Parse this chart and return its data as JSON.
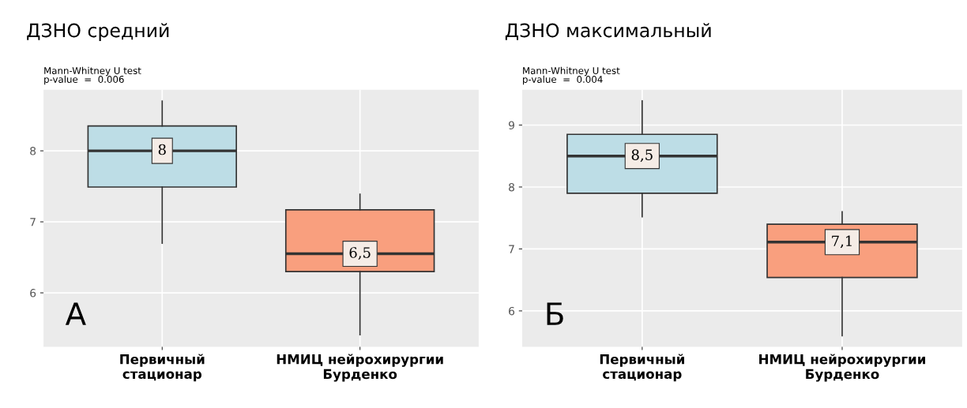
{
  "chart_data": [
    {
      "type": "box",
      "title": "ДЗНО средний",
      "categories": [
        "Первичный\nстационар",
        "НМИЦ нейрохирургии\nБурденко"
      ],
      "boxes": [
        {
          "low": 6.7,
          "q1": 7.49,
          "median": 8.0,
          "q3": 8.35,
          "high": 8.7
        },
        {
          "low": 5.41,
          "q1": 6.3,
          "median": 6.55,
          "q3": 7.17,
          "high": 7.39
        }
      ],
      "colors": [
        "#bddde6",
        "#f99f7e"
      ],
      "ylim": [
        5.24,
        8.86
      ],
      "yticks": [
        6,
        7,
        8
      ],
      "grid": true,
      "annotations": [
        "Mann-Whitney U test\np-value  =  0.006",
        "А",
        {
          "text": "8",
          "x": "Первичный\nстационар",
          "y": 8.0
        },
        {
          "text": "6,5",
          "x": "НМИЦ нейрохирургии\nБурденко",
          "y": 6.55
        }
      ]
    },
    {
      "type": "box",
      "title": "ДЗНО максимальный",
      "categories": [
        "Первичный\nстационар",
        "НМИЦ нейрохирургии\nБурденко"
      ],
      "boxes": [
        {
          "low": 7.52,
          "q1": 7.9,
          "median": 8.5,
          "q3": 8.85,
          "high": 9.39
        },
        {
          "low": 5.6,
          "q1": 6.54,
          "median": 7.11,
          "q3": 7.4,
          "high": 7.6
        }
      ],
      "colors": [
        "#bddde6",
        "#f99f7e"
      ],
      "ylim": [
        5.42,
        9.57
      ],
      "yticks": [
        6,
        7,
        8,
        9
      ],
      "grid": true,
      "annotations": [
        "Mann-Whitney U test\np-value  =  0.004",
        "Б",
        {
          "text": "8,5",
          "x": "Первичный\nстационар",
          "y": 8.5
        },
        {
          "text": "7,1",
          "x": "НМИЦ нейрохирургии\nБурденко",
          "y": 7.11
        }
      ]
    }
  ]
}
